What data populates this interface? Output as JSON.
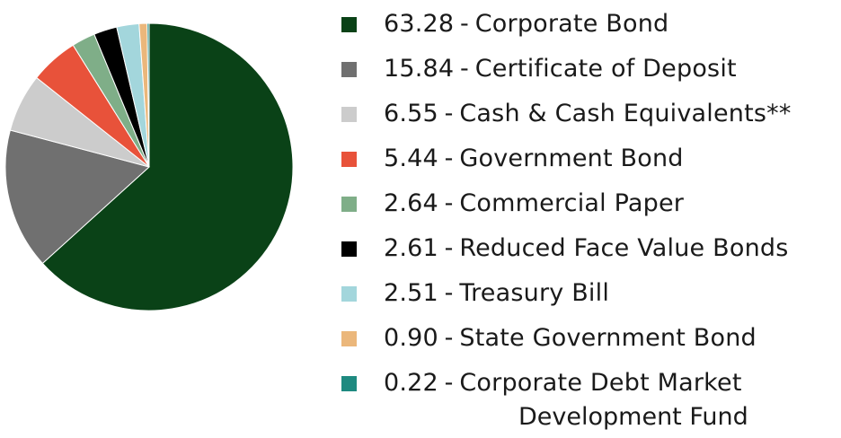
{
  "chart_data": {
    "type": "pie",
    "title": "",
    "legend_position": "right",
    "slices": [
      {
        "value": "63.28",
        "label": "Corporate Bond",
        "color": "#0a4217"
      },
      {
        "value": "15.84",
        "label": "Certificate of Deposit",
        "color": "#707070"
      },
      {
        "value": "6.55",
        "label": "Cash & Cash Equivalents**",
        "color": "#cccccc"
      },
      {
        "value": "5.44",
        "label": "Government Bond",
        "color": "#e8523a"
      },
      {
        "value": "2.64",
        "label": "Commercial Paper",
        "color": "#7fae88"
      },
      {
        "value": "2.61",
        "label": "Reduced Face Value Bonds",
        "color": "#000000"
      },
      {
        "value": "2.51",
        "label": "Treasury Bill",
        "color": "#a3d6dc"
      },
      {
        "value": "0.90",
        "label": "State Government Bond",
        "color": "#ebb77b"
      },
      {
        "value": "0.22",
        "label": "Corporate Debt Market",
        "label_line2": "Development Fund",
        "color": "#1e8a80"
      }
    ]
  }
}
